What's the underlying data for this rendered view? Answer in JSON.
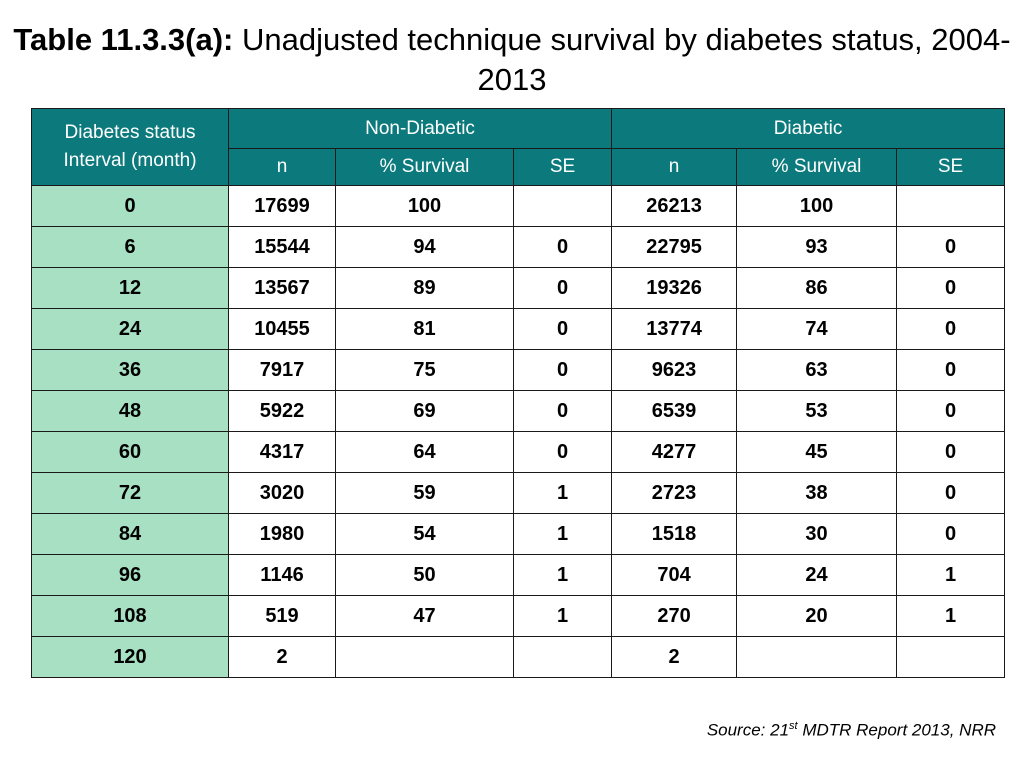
{
  "title": {
    "bold": "Table 11.3.3(a):",
    "rest": " Unadjusted technique survival by diabetes status, 2004-2013"
  },
  "table": {
    "corner_line1": "Diabetes status",
    "corner_line2": "Interval (month)",
    "groups": [
      "Non-Diabetic",
      "Diabetic"
    ],
    "subheaders": [
      "n",
      "% Survival",
      "SE",
      "n",
      "% Survival",
      "SE"
    ],
    "rows": [
      [
        "0",
        "17699",
        "100",
        "",
        "26213",
        "100",
        ""
      ],
      [
        "6",
        "15544",
        "94",
        "0",
        "22795",
        "93",
        "0"
      ],
      [
        "12",
        "13567",
        "89",
        "0",
        "19326",
        "86",
        "0"
      ],
      [
        "24",
        "10455",
        "81",
        "0",
        "13774",
        "74",
        "0"
      ],
      [
        "36",
        "7917",
        "75",
        "0",
        "9623",
        "63",
        "0"
      ],
      [
        "48",
        "5922",
        "69",
        "0",
        "6539",
        "53",
        "0"
      ],
      [
        "60",
        "4317",
        "64",
        "0",
        "4277",
        "45",
        "0"
      ],
      [
        "72",
        "3020",
        "59",
        "1",
        "2723",
        "38",
        "0"
      ],
      [
        "84",
        "1980",
        "54",
        "1",
        "1518",
        "30",
        "0"
      ],
      [
        "96",
        "1146",
        "50",
        "1",
        "704",
        "24",
        "1"
      ],
      [
        "108",
        "519",
        "47",
        "1",
        "270",
        "20",
        "1"
      ],
      [
        "120",
        "2",
        "",
        "",
        "2",
        "",
        ""
      ]
    ]
  },
  "source": {
    "prefix": "Source: 21",
    "superscript": "st",
    "suffix": " MDTR Report 2013, NRR"
  },
  "colors": {
    "header_bg": "#0c7a7c",
    "interval_bg": "#a8e0c4"
  }
}
